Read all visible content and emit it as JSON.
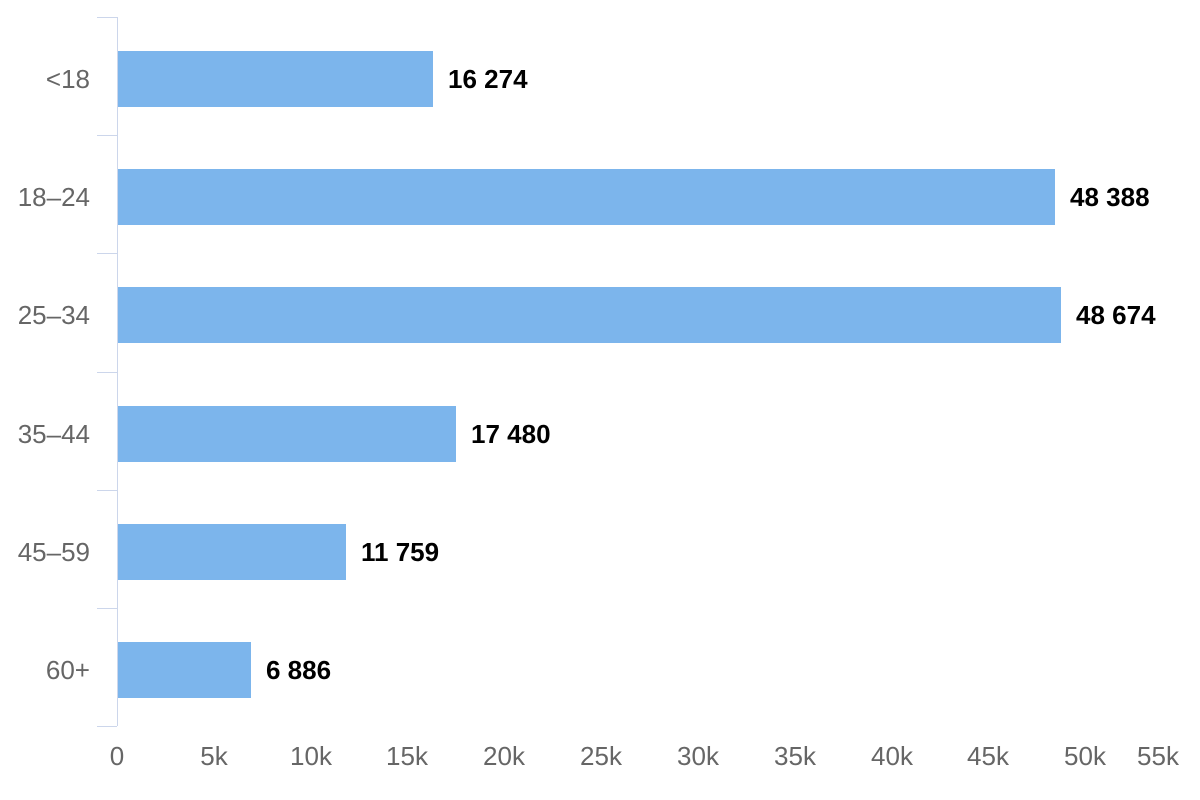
{
  "chart_data": {
    "type": "bar",
    "orientation": "horizontal",
    "title": "",
    "xlabel": "",
    "ylabel": "",
    "categories": [
      "<18",
      "18–24",
      "25–34",
      "35–44",
      "45–59",
      "60+"
    ],
    "values": [
      16274,
      48388,
      48674,
      17480,
      11759,
      6886
    ],
    "value_labels": [
      "16 274",
      "48 388",
      "48 674",
      "17 480",
      "11 759",
      "6 886"
    ],
    "x_axis": {
      "min": 0,
      "max": 55000,
      "tick_interval": 5000,
      "tick_labels": [
        "0",
        "5k",
        "10k",
        "15k",
        "20k",
        "25k",
        "30k",
        "35k",
        "40k",
        "45k",
        "50k",
        "55k"
      ]
    },
    "legend": null,
    "grid": false,
    "colors": {
      "bar": "#7cb5ec",
      "axis_line": "#ccd6eb",
      "axis_label": "#666666",
      "value_label": "#000000",
      "background": "#ffffff"
    }
  }
}
